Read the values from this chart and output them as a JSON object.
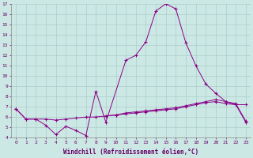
{
  "bg_color": "#cce8e4",
  "line_color": "#880088",
  "grid_color": "#aaceca",
  "xlabel": "Windchill (Refroidissement éolien,°C)",
  "ylim": [
    4,
    17
  ],
  "xlim": [
    -0.5,
    23.5
  ],
  "yticks": [
    4,
    5,
    6,
    7,
    8,
    9,
    10,
    11,
    12,
    13,
    14,
    15,
    16,
    17
  ],
  "xticks": [
    0,
    1,
    2,
    3,
    4,
    5,
    6,
    7,
    8,
    9,
    10,
    11,
    12,
    13,
    14,
    15,
    16,
    17,
    18,
    19,
    20,
    21,
    22,
    23
  ],
  "line1_x": [
    0,
    1,
    2,
    3,
    4,
    5,
    6,
    7,
    8,
    9,
    11,
    12,
    13,
    14,
    15,
    16,
    17,
    18,
    19,
    20,
    21,
    22,
    23
  ],
  "line1_y": [
    6.8,
    5.8,
    5.8,
    5.2,
    4.3,
    5.1,
    4.7,
    4.2,
    8.5,
    5.5,
    11.5,
    12.0,
    13.3,
    16.3,
    17.0,
    16.5,
    13.2,
    11.0,
    9.2,
    8.3,
    7.5,
    7.2,
    7.2
  ],
  "line2_x": [
    0,
    1,
    2,
    3,
    4,
    5,
    6,
    7,
    8,
    9,
    10,
    11,
    12,
    13,
    14,
    15,
    16,
    17,
    18,
    19,
    20,
    21,
    22,
    23
  ],
  "line2_y": [
    6.8,
    5.8,
    5.8,
    5.8,
    5.7,
    5.8,
    5.9,
    6.0,
    6.0,
    6.1,
    6.2,
    6.3,
    6.4,
    6.5,
    6.6,
    6.7,
    6.8,
    7.0,
    7.2,
    7.4,
    7.5,
    7.3,
    7.2,
    5.5
  ],
  "line3_x": [
    9,
    10,
    11,
    12,
    13,
    14,
    15,
    16,
    17,
    18,
    19,
    20,
    21,
    22,
    23
  ],
  "line3_y": [
    6.1,
    6.2,
    6.4,
    6.5,
    6.6,
    6.7,
    6.8,
    6.9,
    7.1,
    7.3,
    7.5,
    7.7,
    7.5,
    7.3,
    5.6
  ]
}
